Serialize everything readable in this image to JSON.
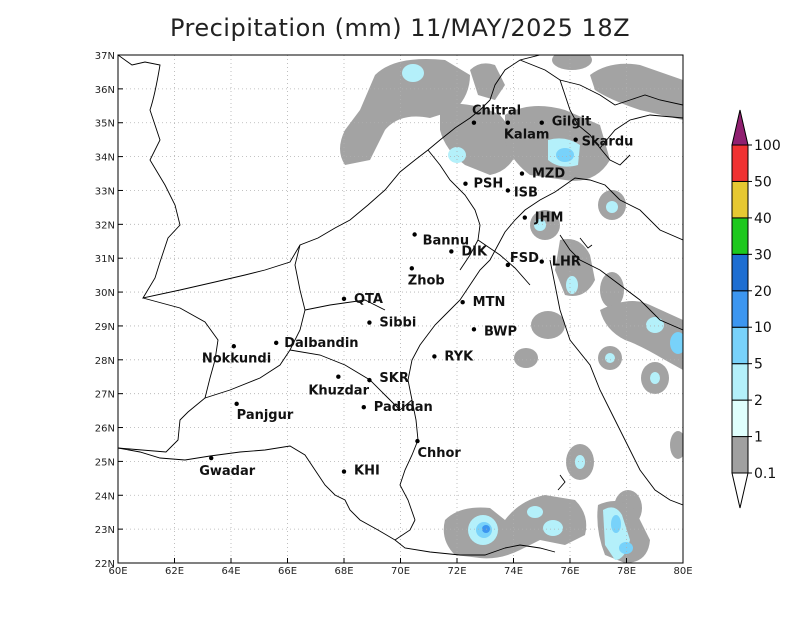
{
  "title": "Precipitation (mm) 11/MAY/2025 18Z",
  "map": {
    "lon_range": [
      60,
      80
    ],
    "lat_range": [
      22,
      37
    ],
    "x_ticks": [
      "60E",
      "62E",
      "64E",
      "66E",
      "68E",
      "70E",
      "72E",
      "74E",
      "76E",
      "78E",
      "80E"
    ],
    "y_ticks": [
      "22N",
      "23N",
      "24N",
      "25N",
      "26N",
      "27N",
      "28N",
      "29N",
      "30N",
      "31N",
      "32N",
      "33N",
      "34N",
      "35N",
      "36N",
      "37N"
    ],
    "grid": true
  },
  "cities": [
    {
      "name": "Chitral",
      "lon": 72.6,
      "lat": 35.0
    },
    {
      "name": "Gilgit",
      "lon": 75.0,
      "lat": 35.0
    },
    {
      "name": "Kalam",
      "lon": 73.8,
      "lat": 35.0
    },
    {
      "name": "Skardu",
      "lon": 76.2,
      "lat": 34.5
    },
    {
      "name": "MZD",
      "lon": 74.3,
      "lat": 33.5
    },
    {
      "name": "PSH",
      "lon": 72.3,
      "lat": 33.2
    },
    {
      "name": "ISB",
      "lon": 73.8,
      "lat": 33.0
    },
    {
      "name": "JHM",
      "lon": 74.4,
      "lat": 32.2
    },
    {
      "name": "Bannu",
      "lon": 70.5,
      "lat": 31.7
    },
    {
      "name": "DIK",
      "lon": 71.8,
      "lat": 31.2
    },
    {
      "name": "FSD",
      "lon": 73.8,
      "lat": 30.8
    },
    {
      "name": "LHR",
      "lon": 75.0,
      "lat": 30.9
    },
    {
      "name": "Zhob",
      "lon": 70.4,
      "lat": 30.7
    },
    {
      "name": "QTA",
      "lon": 68.0,
      "lat": 29.8
    },
    {
      "name": "MTN",
      "lon": 72.2,
      "lat": 29.7
    },
    {
      "name": "Sibbi",
      "lon": 68.9,
      "lat": 29.1
    },
    {
      "name": "BWP",
      "lon": 72.6,
      "lat": 28.9
    },
    {
      "name": "Dalbandin",
      "lon": 65.6,
      "lat": 28.5
    },
    {
      "name": "Nokkundi",
      "lon": 64.1,
      "lat": 28.4
    },
    {
      "name": "RYK",
      "lon": 71.2,
      "lat": 28.1
    },
    {
      "name": "SKR",
      "lon": 68.9,
      "lat": 27.4
    },
    {
      "name": "Khuzdar",
      "lon": 67.8,
      "lat": 27.5
    },
    {
      "name": "Padidan",
      "lon": 68.7,
      "lat": 26.6
    },
    {
      "name": "Panjgur",
      "lon": 64.2,
      "lat": 26.7
    },
    {
      "name": "Chhor",
      "lon": 70.6,
      "lat": 25.6
    },
    {
      "name": "Gwadar",
      "lon": 63.3,
      "lat": 25.1
    },
    {
      "name": "KHI",
      "lon": 68.0,
      "lat": 24.7
    }
  ],
  "colorbar": {
    "levels": [
      "0.1",
      "1",
      "2",
      "5",
      "10",
      "20",
      "30",
      "40",
      "50",
      "100"
    ],
    "colors": [
      "#a0a0a0",
      "#e0fffd",
      "#b4f0fa",
      "#78d2fa",
      "#3c96f0",
      "#1e6ed2",
      "#1ec81e",
      "#e6c832",
      "#f03232",
      "#902070"
    ]
  }
}
